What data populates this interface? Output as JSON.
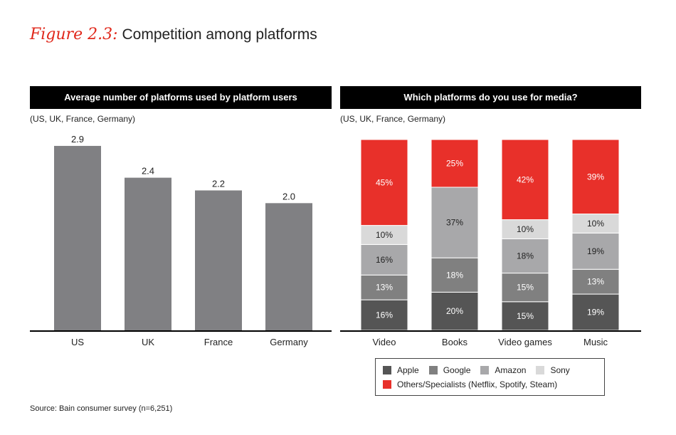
{
  "figure": {
    "label": "Figure 2.3:",
    "title": "Competition among platforms"
  },
  "left_panel": {
    "header": "Average number of platforms used by platform users",
    "note": "(US, UK, France, Germany)"
  },
  "right_panel": {
    "header": "Which platforms do you use for media?",
    "note": "(US, UK, France, Germany)"
  },
  "legend": {
    "items": [
      {
        "label": "Apple",
        "color": "#555555"
      },
      {
        "label": "Google",
        "color": "#808080"
      },
      {
        "label": "Amazon",
        "color": "#a8a8aa"
      },
      {
        "label": "Sony",
        "color": "#d9d9d9"
      },
      {
        "label": "Others/Specialists (Netflix, Spotify, Steam)",
        "color": "#e8302a"
      }
    ]
  },
  "source": "Source: Bain consumer survey (n=6,251)",
  "chart_data": [
    {
      "type": "bar",
      "title": "Average number of platforms used by platform users",
      "subtitle": "(US, UK, France, Germany)",
      "categories": [
        "US",
        "UK",
        "France",
        "Germany"
      ],
      "values": [
        2.9,
        2.4,
        2.2,
        2.0
      ],
      "labels": [
        "2.9",
        "2.4",
        "2.2",
        "2.0"
      ],
      "ylim": [
        0,
        3.0
      ],
      "color": "#808083",
      "grid": false
    },
    {
      "type": "bar",
      "stacked": true,
      "title": "Which platforms do you use for media?",
      "subtitle": "(US, UK, France, Germany)",
      "categories": [
        "Video",
        "Books",
        "Video games",
        "Music"
      ],
      "series": [
        {
          "name": "Apple",
          "color": "#555555",
          "values": [
            16,
            20,
            15,
            19
          ],
          "labels": [
            "16%",
            "20%",
            "15%",
            "19%"
          ]
        },
        {
          "name": "Google",
          "color": "#808080",
          "values": [
            13,
            18,
            15,
            13
          ],
          "labels": [
            "13%",
            "18%",
            "15%",
            "13%"
          ]
        },
        {
          "name": "Amazon",
          "color": "#a8a8aa",
          "values": [
            16,
            37,
            18,
            19
          ],
          "labels": [
            "16%",
            "37%",
            "18%",
            "19%"
          ]
        },
        {
          "name": "Sony",
          "color": "#d9d9d9",
          "values": [
            10,
            0,
            10,
            10
          ],
          "labels": [
            "10%",
            "",
            "10%",
            "10%"
          ]
        },
        {
          "name": "Others/Specialists (Netflix, Spotify, Steam)",
          "color": "#e8302a",
          "values": [
            45,
            25,
            42,
            39
          ],
          "labels": [
            "45%",
            "25%",
            "42%",
            "39%"
          ]
        }
      ],
      "ylim": [
        0,
        100
      ],
      "grid": false,
      "legend_position": "bottom-center"
    }
  ]
}
